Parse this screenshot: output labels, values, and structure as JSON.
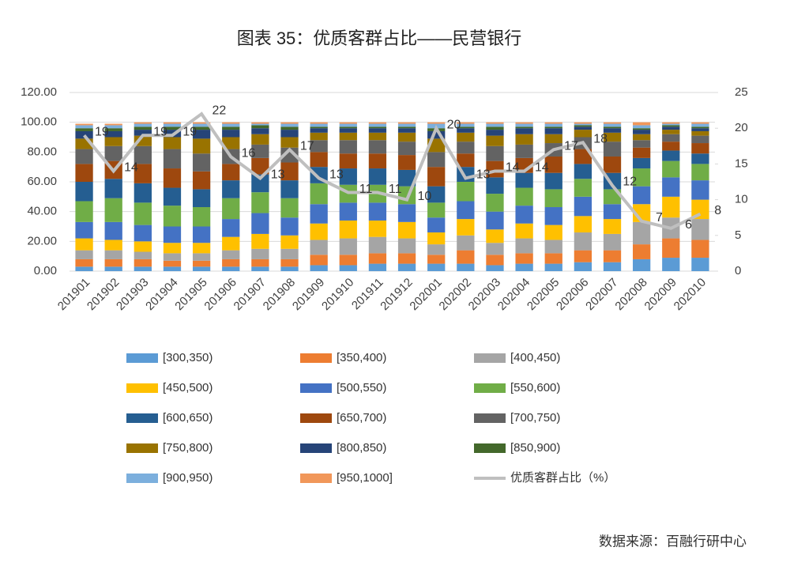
{
  "chart_data": {
    "type": "bar",
    "stacked": true,
    "title": "图表 35：优质客群占比——民营银行",
    "source": "数据来源：百融行研中心",
    "categories": [
      "201901",
      "201902",
      "201903",
      "201904",
      "201905",
      "201906",
      "201907",
      "201908",
      "201909",
      "201910",
      "201911",
      "201912",
      "202001",
      "202002",
      "202003",
      "202004",
      "202005",
      "202006",
      "202007",
      "202008",
      "202009",
      "202010"
    ],
    "ylim": [
      0,
      120
    ],
    "yticks": [
      {
        "value": 0,
        "label": "0.00"
      },
      {
        "value": 20,
        "label": "20.00"
      },
      {
        "value": 40,
        "label": "40.00"
      },
      {
        "value": 60,
        "label": "60.00"
      },
      {
        "value": 80,
        "label": "80.00"
      },
      {
        "value": 100,
        "label": "100.00"
      },
      {
        "value": 120,
        "label": "120.00"
      }
    ],
    "y2lim": [
      0,
      25
    ],
    "y2ticks": [
      0,
      5,
      10,
      15,
      20,
      25
    ],
    "series": [
      {
        "name": "[300,350)",
        "color": "#5b9bd5",
        "values": [
          3,
          3,
          3,
          3,
          3,
          3,
          3,
          3,
          4,
          4,
          5,
          5,
          5,
          5,
          4,
          5,
          5,
          6,
          6,
          8,
          9,
          9
        ]
      },
      {
        "name": "[350,400)",
        "color": "#ed7d31",
        "values": [
          5,
          5,
          5,
          4,
          4,
          5,
          5,
          5,
          7,
          7,
          7,
          7,
          6,
          9,
          7,
          7,
          7,
          8,
          8,
          10,
          13,
          12
        ]
      },
      {
        "name": "[400,450)",
        "color": "#a5a5a5",
        "values": [
          6,
          6,
          5,
          5,
          5,
          6,
          7,
          7,
          10,
          11,
          11,
          10,
          7,
          10,
          8,
          10,
          9,
          12,
          11,
          15,
          14,
          14
        ]
      },
      {
        "name": "[450,500)",
        "color": "#ffc000",
        "values": [
          8,
          7,
          7,
          7,
          7,
          9,
          10,
          9,
          11,
          12,
          11,
          11,
          8,
          11,
          9,
          10,
          10,
          11,
          10,
          12,
          14,
          13
        ]
      },
      {
        "name": "[500,550)",
        "color": "#4472c4",
        "values": [
          11,
          12,
          11,
          11,
          11,
          12,
          14,
          12,
          13,
          12,
          12,
          12,
          10,
          12,
          12,
          12,
          12,
          13,
          10,
          12,
          13,
          13
        ]
      },
      {
        "name": "[550,600)",
        "color": "#70ad47",
        "values": [
          14,
          16,
          15,
          14,
          13,
          14,
          14,
          13,
          14,
          12,
          12,
          12,
          10,
          13,
          12,
          12,
          12,
          12,
          10,
          12,
          11,
          11
        ]
      },
      {
        "name": "[600,650)",
        "color": "#255e91",
        "values": [
          13,
          13,
          13,
          12,
          12,
          12,
          12,
          12,
          11,
          11,
          11,
          11,
          11,
          10,
          11,
          10,
          11,
          10,
          11,
          7,
          7,
          7
        ]
      },
      {
        "name": "[650,700)",
        "color": "#9e480e",
        "values": [
          12,
          12,
          13,
          13,
          12,
          11,
          11,
          12,
          10,
          10,
          10,
          10,
          13,
          9,
          11,
          10,
          11,
          10,
          11,
          7,
          6,
          7
        ]
      },
      {
        "name": "[700,750)",
        "color": "#636363",
        "values": [
          10,
          10,
          12,
          13,
          12,
          10,
          9,
          10,
          8,
          9,
          9,
          9,
          10,
          8,
          10,
          9,
          9,
          8,
          10,
          5,
          5,
          5
        ]
      },
      {
        "name": "[750,800)",
        "color": "#997300",
        "values": [
          7,
          6,
          7,
          8,
          10,
          8,
          7,
          7,
          5,
          5,
          5,
          6,
          9,
          6,
          7,
          7,
          6,
          5,
          6,
          4,
          3,
          3
        ]
      },
      {
        "name": "[800,850)",
        "color": "#264478",
        "values": [
          5,
          4,
          4,
          5,
          6,
          5,
          4,
          5,
          3,
          3,
          3,
          3,
          5,
          3,
          4,
          4,
          4,
          2,
          3,
          3,
          2,
          2
        ]
      },
      {
        "name": "[850,900)",
        "color": "#43682b",
        "values": [
          2,
          2,
          2,
          2,
          2,
          2,
          2,
          2,
          1,
          1,
          1,
          1,
          2,
          1,
          2,
          1,
          1,
          1,
          1,
          1,
          1,
          1
        ]
      },
      {
        "name": "[900,950)",
        "color": "#7cafdd",
        "values": [
          2,
          2,
          2,
          2,
          2,
          2,
          1,
          2,
          2,
          2,
          2,
          2,
          3,
          2,
          2,
          2,
          2,
          1,
          2,
          2,
          1,
          2
        ]
      },
      {
        "name": "[950,1000]",
        "color": "#f1975a",
        "values": [
          1,
          1,
          1,
          1,
          1,
          1,
          1,
          1,
          1,
          1,
          1,
          1,
          1,
          1,
          1,
          1,
          1,
          1,
          1,
          2,
          1,
          1
        ]
      },
      {
        "name": "优质客群占比（%）",
        "color": "#bfbfbf",
        "type": "line",
        "axis": "y2",
        "values": [
          19,
          14,
          19,
          19,
          22,
          16,
          13,
          17,
          13,
          11,
          11,
          10,
          20,
          13,
          14,
          14,
          17,
          18,
          12,
          7,
          6,
          8
        ]
      }
    ]
  }
}
